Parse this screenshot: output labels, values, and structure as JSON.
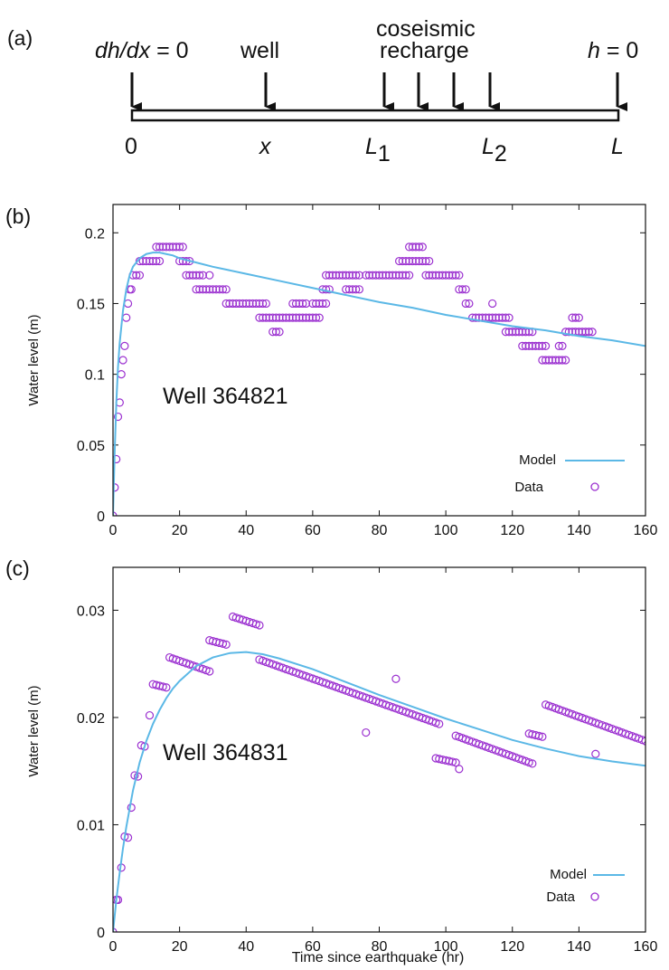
{
  "panels": {
    "a": {
      "tag": "(a)"
    },
    "b": {
      "tag": "(b)"
    },
    "c": {
      "tag": "(c)"
    }
  },
  "schematic": {
    "arrow_labels": {
      "left": "dh/dx",
      "left_eq": " = 0",
      "well": "well",
      "recharge_top": "coseismic",
      "recharge_bottom": "recharge",
      "right": "h",
      "right_eq": " = 0"
    },
    "bottom_labels": {
      "origin": "0",
      "x": "x",
      "L1": "L",
      "L1_sub": "1",
      "L2": "L",
      "L2_sub": "2",
      "L": "L"
    }
  },
  "colors": {
    "model": "#5bb8e6",
    "data": "#9b30d0",
    "axis": "#111111"
  },
  "chart_data": [
    {
      "type": "scatter",
      "panel": "b",
      "annotation": "Well 364821",
      "ylabel": "Water level (m)",
      "xlabel": "",
      "xlim": [
        0,
        160
      ],
      "ylim": [
        0,
        0.22
      ],
      "xticks": [
        "0",
        "20",
        "40",
        "60",
        "80",
        "100",
        "120",
        "140",
        "160"
      ],
      "yticks": [
        "0",
        "0.05",
        "0.1",
        "0.15",
        "0.2"
      ],
      "legend": {
        "position": "bottom-right",
        "entries": [
          "Model",
          "Data"
        ]
      },
      "series": [
        {
          "name": "Model",
          "kind": "line",
          "x": [
            0,
            0.5,
            1,
            1.5,
            2,
            3,
            4,
            5,
            6,
            8,
            10,
            12,
            14,
            16,
            18,
            20,
            25,
            30,
            40,
            50,
            60,
            70,
            80,
            90,
            100,
            110,
            120,
            130,
            140,
            150,
            160
          ],
          "y": [
            0,
            0.045,
            0.08,
            0.105,
            0.122,
            0.145,
            0.16,
            0.17,
            0.176,
            0.182,
            0.185,
            0.186,
            0.186,
            0.185,
            0.184,
            0.182,
            0.179,
            0.176,
            0.171,
            0.166,
            0.161,
            0.156,
            0.151,
            0.147,
            0.142,
            0.138,
            0.134,
            0.131,
            0.127,
            0.124,
            0.12
          ]
        },
        {
          "name": "Data",
          "kind": "scatter",
          "segments": [
            {
              "y": 0.0,
              "x": [
                0
              ]
            },
            {
              "y": 0.02,
              "x": [
                0.5
              ]
            },
            {
              "y": 0.04,
              "x": [
                1
              ]
            },
            {
              "y": 0.07,
              "x": [
                1.5
              ]
            },
            {
              "y": 0.08,
              "x": [
                2
              ]
            },
            {
              "y": 0.1,
              "x": [
                2.5
              ]
            },
            {
              "y": 0.11,
              "x": [
                3
              ]
            },
            {
              "y": 0.12,
              "x": [
                3.5
              ]
            },
            {
              "y": 0.14,
              "x": [
                4
              ]
            },
            {
              "y": 0.15,
              "x": [
                4.5
              ]
            },
            {
              "y": 0.16,
              "x": [
                5,
                5.5
              ]
            },
            {
              "y": 0.17,
              "x": [
                6,
                7,
                8
              ]
            },
            {
              "y": 0.18,
              "x": [
                8,
                9,
                10,
                11,
                12,
                13,
                14
              ]
            },
            {
              "y": 0.19,
              "x": [
                13,
                14,
                15,
                16,
                17,
                18,
                19,
                20,
                21
              ]
            },
            {
              "y": 0.18,
              "x": [
                20,
                21,
                22,
                23
              ]
            },
            {
              "y": 0.17,
              "x": [
                22,
                23,
                24,
                25,
                26,
                27
              ]
            },
            {
              "y": 0.17,
              "x": [
                29
              ]
            },
            {
              "y": 0.16,
              "x": [
                25,
                26,
                27,
                28,
                29,
                30,
                31,
                32,
                33,
                34
              ]
            },
            {
              "y": 0.15,
              "x": [
                34,
                35,
                36,
                37,
                38,
                39,
                40,
                41,
                42,
                43,
                44,
                45,
                46
              ]
            },
            {
              "y": 0.14,
              "x": [
                44,
                45,
                46,
                47,
                48,
                49,
                50,
                51,
                52,
                53,
                54,
                55,
                56,
                57,
                58,
                59,
                60,
                61,
                62
              ]
            },
            {
              "y": 0.13,
              "x": [
                48,
                49,
                50
              ]
            },
            {
              "y": 0.15,
              "x": [
                54,
                55,
                56,
                57,
                58
              ]
            },
            {
              "y": 0.15,
              "x": [
                60,
                61,
                62,
                63,
                64
              ]
            },
            {
              "y": 0.16,
              "x": [
                63,
                64,
                65
              ]
            },
            {
              "y": 0.17,
              "x": [
                64,
                65,
                66,
                67,
                68,
                69,
                70,
                71,
                72,
                73,
                74
              ]
            },
            {
              "y": 0.16,
              "x": [
                70,
                71,
                72,
                73,
                74
              ]
            },
            {
              "y": 0.17,
              "x": [
                76,
                77,
                78,
                79,
                80,
                81,
                82,
                83,
                84,
                85,
                86,
                87,
                88,
                89
              ]
            },
            {
              "y": 0.18,
              "x": [
                86,
                87,
                88,
                89,
                90,
                91,
                92,
                93,
                94,
                95
              ]
            },
            {
              "y": 0.19,
              "x": [
                89,
                90,
                91,
                92,
                93
              ]
            },
            {
              "y": 0.17,
              "x": [
                94,
                95,
                96,
                97,
                98,
                99,
                100,
                101,
                102,
                103,
                104
              ]
            },
            {
              "y": 0.16,
              "x": [
                104,
                105,
                106
              ]
            },
            {
              "y": 0.15,
              "x": [
                106,
                107
              ]
            },
            {
              "y": 0.14,
              "x": [
                108,
                109,
                110,
                111,
                112,
                113,
                114,
                115,
                116,
                117,
                118,
                119
              ]
            },
            {
              "y": 0.15,
              "x": [
                114
              ]
            },
            {
              "y": 0.13,
              "x": [
                118,
                119,
                120,
                121,
                122,
                123,
                124,
                125,
                126
              ]
            },
            {
              "y": 0.12,
              "x": [
                123,
                124,
                125,
                126,
                127,
                128,
                129,
                130
              ]
            },
            {
              "y": 0.11,
              "x": [
                129,
                130,
                131,
                132,
                133,
                134,
                135,
                136
              ]
            },
            {
              "y": 0.12,
              "x": [
                134,
                135
              ]
            },
            {
              "y": 0.13,
              "x": [
                136,
                137,
                138,
                139,
                140,
                141,
                142,
                143,
                144
              ]
            },
            {
              "y": 0.14,
              "x": [
                138,
                139,
                140
              ]
            }
          ]
        }
      ]
    },
    {
      "type": "scatter",
      "panel": "c",
      "annotation": "Well 364831",
      "ylabel": "Water level (m)",
      "xlabel": "Time since earthquake (hr)",
      "xlim": [
        0,
        160
      ],
      "ylim": [
        0,
        0.034
      ],
      "xticks": [
        "0",
        "20",
        "40",
        "60",
        "80",
        "100",
        "120",
        "140",
        "160"
      ],
      "yticks": [
        "0",
        "0.01",
        "0.02",
        "0.03"
      ],
      "legend": {
        "position": "bottom-right",
        "entries": [
          "Model",
          "Data"
        ]
      },
      "series": [
        {
          "name": "Model",
          "kind": "line",
          "x": [
            0,
            1,
            2,
            3,
            4,
            6,
            8,
            10,
            12,
            14,
            16,
            18,
            20,
            25,
            30,
            35,
            40,
            45,
            50,
            60,
            70,
            80,
            90,
            100,
            110,
            120,
            130,
            140,
            150,
            160
          ],
          "y": [
            0,
            0.003,
            0.0055,
            0.0078,
            0.0098,
            0.0132,
            0.0158,
            0.0178,
            0.0194,
            0.0207,
            0.0218,
            0.0227,
            0.0234,
            0.0248,
            0.0256,
            0.026,
            0.0261,
            0.0259,
            0.0255,
            0.0245,
            0.0233,
            0.0221,
            0.021,
            0.0199,
            0.0189,
            0.0179,
            0.0171,
            0.0164,
            0.0159,
            0.0155
          ]
        },
        {
          "name": "Data",
          "kind": "scatter",
          "segments": [
            {
              "x0": 0,
              "x1": 0,
              "y0": 0.0,
              "y1": 0.0,
              "n": 1
            },
            {
              "x0": 1,
              "x1": 1.5,
              "y0": 0.003,
              "y1": 0.003,
              "n": 2
            },
            {
              "x0": 2.5,
              "x1": 2.5,
              "y0": 0.006,
              "y1": 0.006,
              "n": 1
            },
            {
              "x0": 3.5,
              "x1": 4.5,
              "y0": 0.0089,
              "y1": 0.0088,
              "n": 2
            },
            {
              "x0": 5.5,
              "x1": 5.5,
              "y0": 0.0116,
              "y1": 0.0116,
              "n": 1
            },
            {
              "x0": 6.5,
              "x1": 7.5,
              "y0": 0.0146,
              "y1": 0.0145,
              "n": 2
            },
            {
              "x0": 8.5,
              "x1": 9.5,
              "y0": 0.0174,
              "y1": 0.0173,
              "n": 2
            },
            {
              "x0": 11,
              "x1": 11,
              "y0": 0.0202,
              "y1": 0.0202,
              "n": 1
            },
            {
              "x0": 12,
              "x1": 16,
              "y0": 0.0231,
              "y1": 0.0228,
              "n": 5
            },
            {
              "x0": 17,
              "x1": 29,
              "y0": 0.0256,
              "y1": 0.0243,
              "n": 13
            },
            {
              "x0": 29,
              "x1": 34,
              "y0": 0.0272,
              "y1": 0.0268,
              "n": 6
            },
            {
              "x0": 36,
              "x1": 44,
              "y0": 0.0294,
              "y1": 0.0286,
              "n": 9
            },
            {
              "x0": 44,
              "x1": 98,
              "y0": 0.0254,
              "y1": 0.0194,
              "n": 55
            },
            {
              "x0": 76,
              "x1": 76,
              "y0": 0.0186,
              "y1": 0.0186,
              "n": 1
            },
            {
              "x0": 85,
              "x1": 85,
              "y0": 0.0236,
              "y1": 0.0236,
              "n": 1
            },
            {
              "x0": 97,
              "x1": 103,
              "y0": 0.0162,
              "y1": 0.0158,
              "n": 7
            },
            {
              "x0": 104,
              "x1": 104,
              "y0": 0.0152,
              "y1": 0.0152,
              "n": 1
            },
            {
              "x0": 103,
              "x1": 126,
              "y0": 0.0183,
              "y1": 0.0157,
              "n": 24
            },
            {
              "x0": 125,
              "x1": 129,
              "y0": 0.0185,
              "y1": 0.0182,
              "n": 5
            },
            {
              "x0": 130,
              "x1": 160,
              "y0": 0.0212,
              "y1": 0.0178,
              "n": 31
            },
            {
              "x0": 145,
              "x1": 145,
              "y0": 0.0166,
              "y1": 0.0166,
              "n": 1
            }
          ]
        }
      ]
    }
  ]
}
